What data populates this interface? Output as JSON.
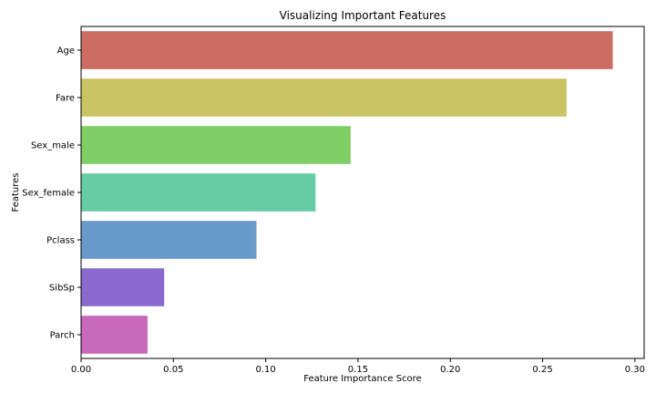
{
  "chart_data": {
    "type": "bar",
    "orientation": "horizontal",
    "title": "Visualizing Important Features",
    "xlabel": "Feature Importance Score",
    "ylabel": "Features",
    "categories": [
      "Age",
      "Fare",
      "Sex_male",
      "Sex_female",
      "Pclass",
      "SibSp",
      "Parch"
    ],
    "values": [
      0.288,
      0.263,
      0.146,
      0.127,
      0.095,
      0.045,
      0.036
    ],
    "colors": [
      "#cc6c62",
      "#cbc465",
      "#7fce66",
      "#66cca3",
      "#689bcc",
      "#8c69cf",
      "#c969bb"
    ],
    "xlim": [
      0,
      0.305
    ],
    "xticks": [
      0.0,
      0.05,
      0.1,
      0.15,
      0.2,
      0.25,
      0.3
    ],
    "xtick_labels": [
      "0.00",
      "0.05",
      "0.10",
      "0.15",
      "0.20",
      "0.25",
      "0.30"
    ],
    "grid": false,
    "legend": "none"
  }
}
